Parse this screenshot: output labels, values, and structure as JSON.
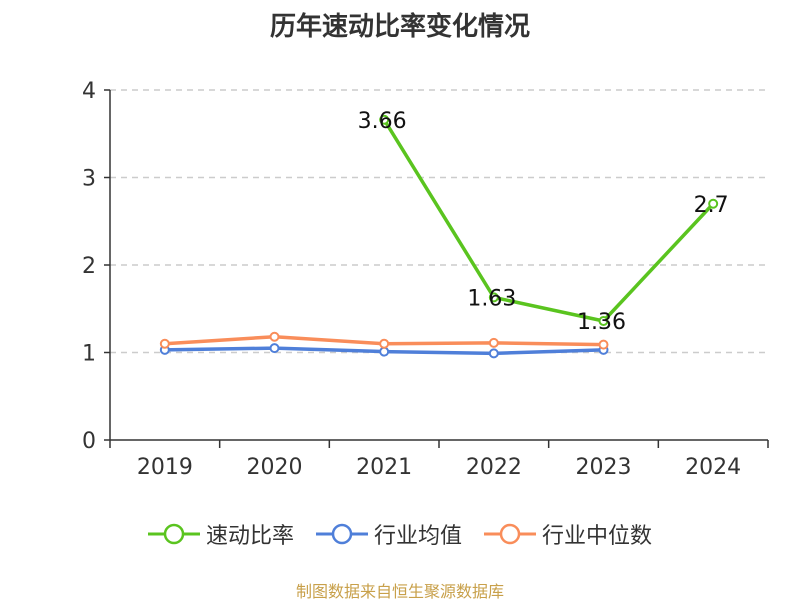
{
  "title": "历年速动比率变化情况",
  "source": "制图数据来自恒生聚源数据库",
  "chart_data": {
    "type": "line",
    "title": "历年速动比率变化情况",
    "categories": [
      "2019",
      "2020",
      "2021",
      "2022",
      "2023",
      "2024"
    ],
    "ylim": [
      0,
      4
    ],
    "yticks": [
      "0",
      "1",
      "2",
      "3",
      "4"
    ],
    "grid": true,
    "legend_position": "bottom",
    "series": [
      {
        "name": "速动比率",
        "color": "#5ac41f",
        "values": [
          null,
          null,
          3.66,
          1.63,
          1.36,
          2.7
        ],
        "labels": [
          "",
          "",
          "3.66",
          "1.63",
          "1.36",
          "2.7"
        ]
      },
      {
        "name": "行业均值",
        "color": "#4f7fd9",
        "values": [
          1.03,
          1.05,
          1.01,
          0.99,
          1.03,
          null
        ]
      },
      {
        "name": "行业中位数",
        "color": "#f98d5a",
        "values": [
          1.1,
          1.18,
          1.1,
          1.11,
          1.09,
          null
        ]
      }
    ]
  }
}
